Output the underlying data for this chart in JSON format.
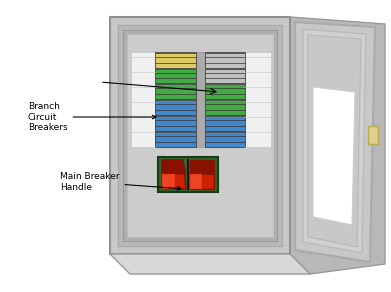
{
  "bg": "#ffffff",
  "cabinet_face": "#c8c8c8",
  "cabinet_edge_top": "#b0b0b0",
  "cabinet_inner": "#b8b8b8",
  "cabinet_inset": "#a8a8a8",
  "cabinet_dark": "#909090",
  "door_face": "#c8c8c8",
  "door_inner": "#d4d4d4",
  "door_edge": "#b0b0b0",
  "door_win": "#ffffff",
  "latch_color": "#ddd090",
  "mb_bg": "#336633",
  "mb_red": "#cc2200",
  "mb_red_dark": "#881100",
  "mb_red_light": "#ee4422",
  "breaker_blue": "#4488cc",
  "breaker_blue_dark": "#2266aa",
  "breaker_green": "#44aa44",
  "breaker_green_dark": "#228822",
  "breaker_yellow": "#ddcc66",
  "breaker_gray_dark": "#666666",
  "label_white": "#f0f0f0",
  "ann_color": "#000000",
  "label_main": "Main Breaker\nHandle",
  "label_branch": "Branch\nCircuit\nBreakers"
}
